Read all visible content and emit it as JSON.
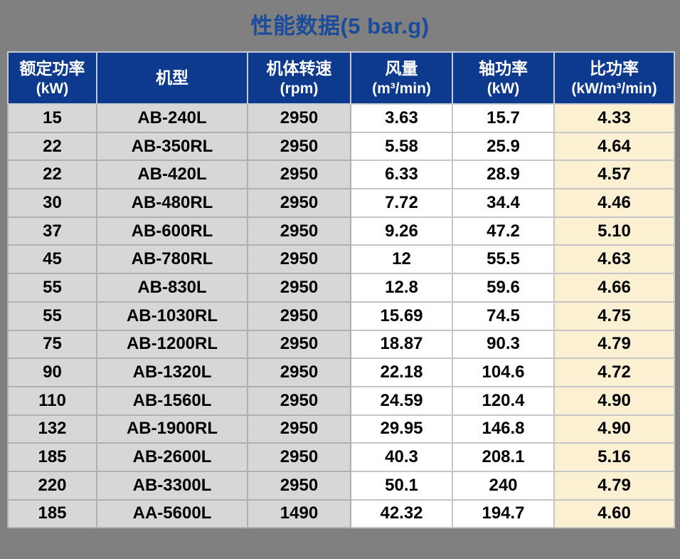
{
  "title": "性能数据(5 bar.g)",
  "table": {
    "columns": [
      {
        "label": "额定功率",
        "unit": "(kW)"
      },
      {
        "label": "机型",
        "unit": ""
      },
      {
        "label": "机体转速",
        "unit": "(rpm)"
      },
      {
        "label": "风量",
        "unit": "(m³/min)"
      },
      {
        "label": "轴功率",
        "unit": "(kW)"
      },
      {
        "label": "比功率",
        "unit": "(kW/m³/min)"
      }
    ],
    "rows": [
      [
        "15",
        "AB-240L",
        "2950",
        "3.63",
        "15.7",
        "4.33"
      ],
      [
        "22",
        "AB-350RL",
        "2950",
        "5.58",
        "25.9",
        "4.64"
      ],
      [
        "22",
        "AB-420L",
        "2950",
        "6.33",
        "28.9",
        "4.57"
      ],
      [
        "30",
        "AB-480RL",
        "2950",
        "7.72",
        "34.4",
        "4.46"
      ],
      [
        "37",
        "AB-600RL",
        "2950",
        "9.26",
        "47.2",
        "5.10"
      ],
      [
        "45",
        "AB-780RL",
        "2950",
        "12",
        "55.5",
        "4.63"
      ],
      [
        "55",
        "AB-830L",
        "2950",
        "12.8",
        "59.6",
        "4.66"
      ],
      [
        "55",
        "AB-1030RL",
        "2950",
        "15.69",
        "74.5",
        "4.75"
      ],
      [
        "75",
        "AB-1200RL",
        "2950",
        "18.87",
        "90.3",
        "4.79"
      ],
      [
        "90",
        "AB-1320L",
        "2950",
        "22.18",
        "104.6",
        "4.72"
      ],
      [
        "110",
        "AB-1560L",
        "2950",
        "24.59",
        "120.4",
        "4.90"
      ],
      [
        "132",
        "AB-1900RL",
        "2950",
        "29.95",
        "146.8",
        "4.90"
      ],
      [
        "185",
        "AB-2600L",
        "2950",
        "40.3",
        "208.1",
        "5.16"
      ],
      [
        "220",
        "AB-3300L",
        "2950",
        "50.1",
        "240",
        "4.79"
      ],
      [
        "185",
        "AA-5600L",
        "1490",
        "42.32",
        "194.7",
        "4.60"
      ]
    ]
  },
  "colors": {
    "page_background": "#808080",
    "title_text": "#1A4B9C",
    "header_background": "#0D3A8C",
    "header_text": "#FFFFFF",
    "cell_gray": "#D7D7D7",
    "cell_white": "#FFFFFF",
    "cell_cream": "#FBF0D2"
  }
}
